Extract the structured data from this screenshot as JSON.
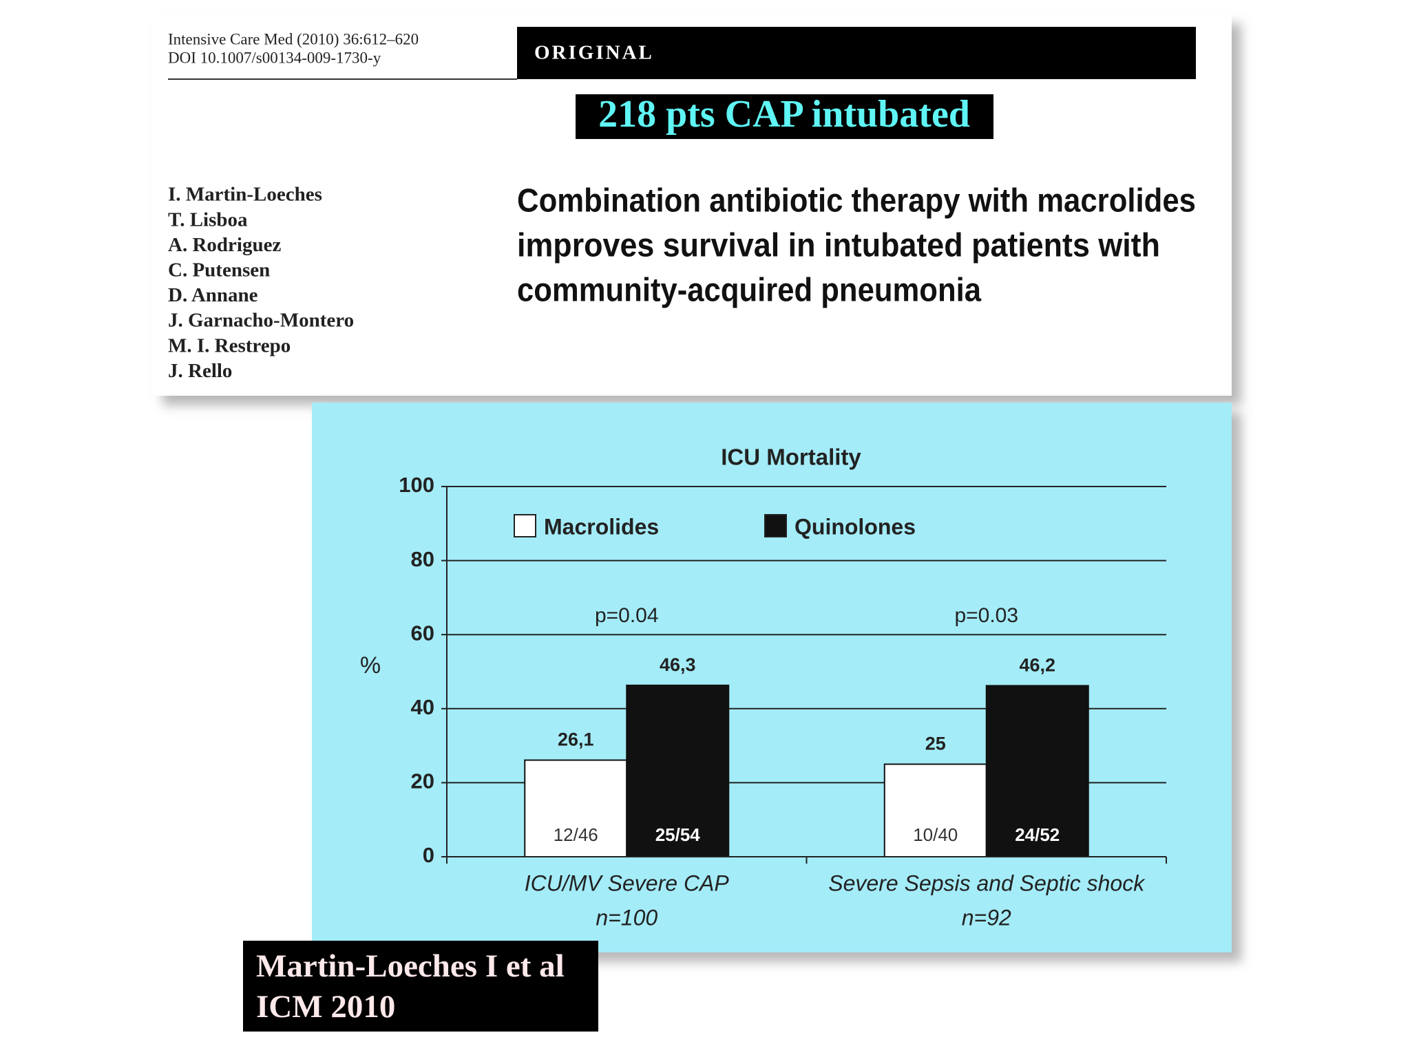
{
  "header": {
    "citation": [
      "Intensive Care Med (2010) 36:612–620",
      "DOI 10.1007/s00134-009-1730-y"
    ],
    "section": "ORIGINAL"
  },
  "highlight": "218 pts CAP intubated",
  "authors": [
    "I. Martin-Loeches",
    "T. Lisboa",
    "A. Rodriguez",
    "C. Putensen",
    "D. Annane",
    "J. Garnacho-Montero",
    "M. I. Restrepo",
    "J. Rello"
  ],
  "paper_title": [
    "Combination antibiotic therapy with macrolides",
    "improves survival in intubated patients with",
    "community-acquired pneumonia"
  ],
  "chart_data": {
    "type": "bar",
    "title": "ICU Mortality",
    "y_label": "%",
    "categories": [
      "ICU/MV Severe CAP",
      "Severe Sepsis and Septic shock"
    ],
    "category_notes": [
      "n=100",
      "n=92"
    ],
    "annotations": [
      "p=0.04",
      "p=0.03"
    ],
    "series": [
      {
        "name": "Macrolides",
        "color": "#ffffff",
        "values": [
          26.1,
          25
        ],
        "value_labels": [
          "26,1",
          "25"
        ],
        "counts": [
          "12/46",
          "10/40"
        ]
      },
      {
        "name": "Quinolones",
        "color": "#111111",
        "values": [
          46.3,
          46.2
        ],
        "value_labels": [
          "46,3",
          "46,2"
        ],
        "counts": [
          "25/54",
          "24/52"
        ]
      }
    ],
    "ylim": [
      0,
      100
    ],
    "yticks": [
      0,
      20,
      40,
      60,
      80,
      100
    ],
    "grid": true,
    "background": "#a4ecf8"
  },
  "citation_box": [
    "Martin-Loeches I et al",
    "ICM 2010"
  ]
}
